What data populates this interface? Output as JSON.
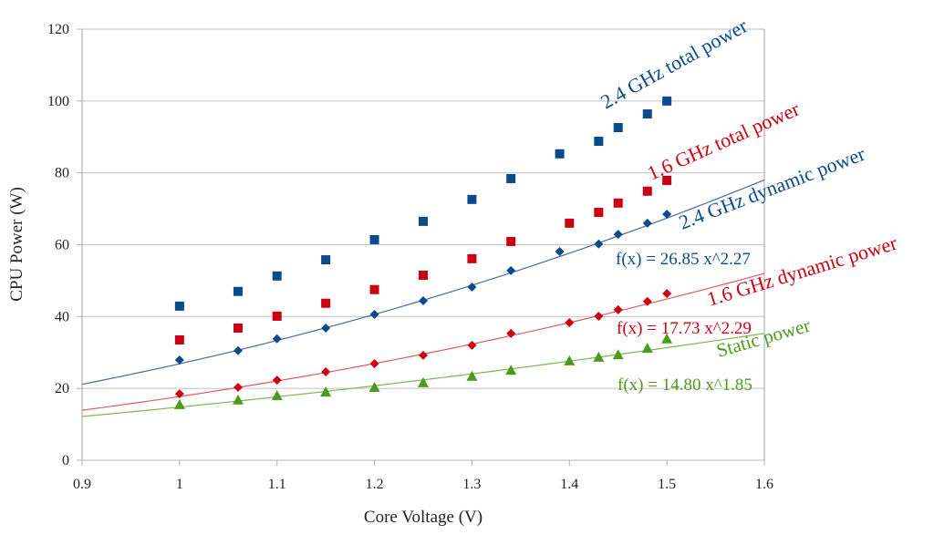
{
  "chart_data": {
    "type": "scatter",
    "title": "",
    "xlabel": "Core Voltage (V)",
    "ylabel": "CPU Power (W)",
    "xlim": [
      0.9,
      1.6
    ],
    "ylim": [
      0,
      120
    ],
    "xticks": [
      "0.9",
      "1",
      "1.1",
      "1.2",
      "1.3",
      "1.4",
      "1.5",
      "1.6"
    ],
    "yticks": [
      "0",
      "20",
      "40",
      "60",
      "80",
      "100",
      "120"
    ],
    "grid": "horizontal",
    "series": [
      {
        "name": "2.4 GHz total power",
        "color": "#0b4a8b",
        "marker": "square",
        "x": [
          1.0,
          1.06,
          1.1,
          1.15,
          1.2,
          1.25,
          1.3,
          1.34,
          1.39,
          1.43,
          1.45,
          1.48,
          1.5
        ],
        "y": [
          42.9,
          47.0,
          51.3,
          55.8,
          61.4,
          66.5,
          72.6,
          78.4,
          85.3,
          88.8,
          92.6,
          96.4,
          100.0
        ]
      },
      {
        "name": "1.6 GHz total power",
        "color": "#cc0011",
        "marker": "square",
        "x": [
          1.0,
          1.06,
          1.1,
          1.15,
          1.2,
          1.25,
          1.3,
          1.34,
          1.4,
          1.43,
          1.45,
          1.48,
          1.5
        ],
        "y": [
          33.5,
          36.8,
          40.1,
          43.7,
          47.5,
          51.5,
          56.1,
          60.9,
          66.0,
          69.0,
          71.6,
          74.9,
          77.9
        ]
      },
      {
        "name": "2.4 GHz dynamic power",
        "color": "#0b4a8b",
        "marker": "diamond",
        "x": [
          1.0,
          1.06,
          1.1,
          1.15,
          1.2,
          1.25,
          1.3,
          1.34,
          1.39,
          1.43,
          1.45,
          1.48,
          1.5
        ],
        "y": [
          27.9,
          30.5,
          33.8,
          36.8,
          40.6,
          44.4,
          48.2,
          52.8,
          58.1,
          60.2,
          62.9,
          66.0,
          68.5
        ],
        "trend": {
          "a": 26.85,
          "b": 2.27,
          "label": "f(x) = 26.85 x^2.27",
          "color": "#4a6a9a"
        }
      },
      {
        "name": "1.6 GHz dynamic power",
        "color": "#cc0011",
        "marker": "diamond",
        "x": [
          1.0,
          1.06,
          1.1,
          1.15,
          1.2,
          1.25,
          1.3,
          1.34,
          1.4,
          1.43,
          1.45,
          1.48,
          1.5
        ],
        "y": [
          18.5,
          20.3,
          22.3,
          24.6,
          26.9,
          29.2,
          32.0,
          35.3,
          38.3,
          40.1,
          41.9,
          44.2,
          46.4
        ],
        "trend": {
          "a": 17.73,
          "b": 2.29,
          "label": "f(x) = 17.73 x^2.29",
          "color": "#e05a5a"
        }
      },
      {
        "name": "Static power",
        "color": "#4e9a1e",
        "marker": "triangle",
        "x": [
          1.0,
          1.06,
          1.1,
          1.15,
          1.2,
          1.25,
          1.3,
          1.34,
          1.4,
          1.43,
          1.45,
          1.48,
          1.5
        ],
        "y": [
          15.5,
          16.8,
          18.0,
          19.0,
          20.3,
          21.6,
          23.4,
          25.1,
          27.7,
          28.7,
          29.4,
          31.2,
          33.8
        ],
        "trend": {
          "a": 14.8,
          "b": 1.85,
          "label": "f(x) = 14.80 x^1.85",
          "color": "#7ab84e"
        }
      }
    ]
  }
}
